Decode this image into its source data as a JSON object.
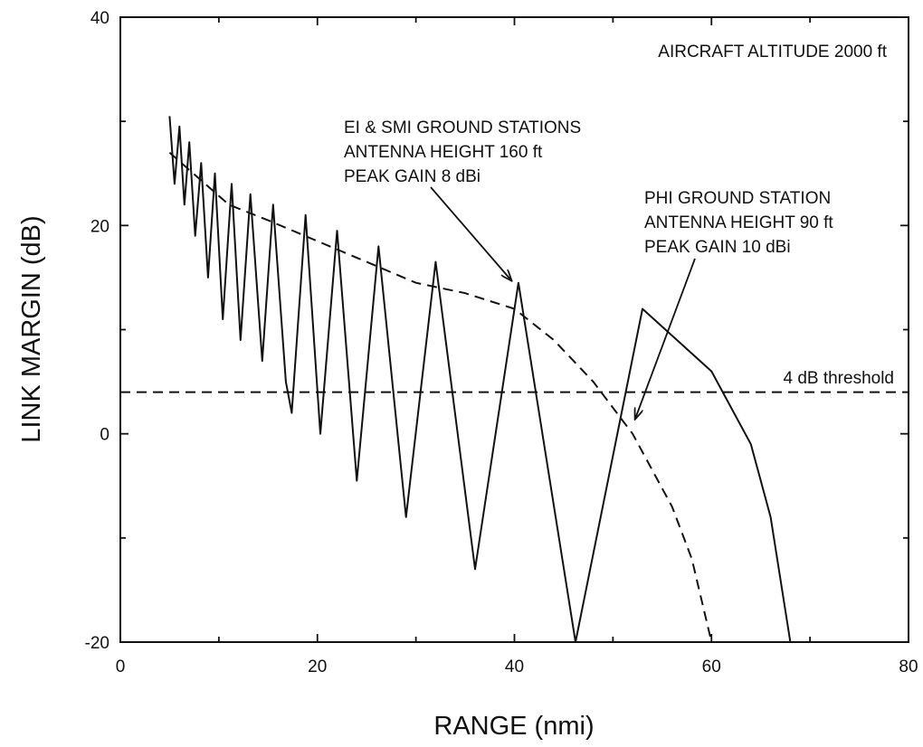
{
  "chart_data": {
    "type": "line",
    "xlabel": "RANGE (nmi)",
    "ylabel": "LINK MARGIN (dB)",
    "xlim": [
      0,
      80
    ],
    "ylim": [
      -20,
      40
    ],
    "x_ticks": [
      0,
      20,
      40,
      60,
      80
    ],
    "y_ticks": [
      -20,
      0,
      20,
      40
    ],
    "grid": false,
    "series": [
      {
        "style": "solid",
        "x": [
          5,
          5.5,
          6,
          6.5,
          7,
          7.6,
          8.2,
          8.9,
          9.6,
          10.4,
          11.3,
          12.2,
          13.2,
          14.4,
          15.5,
          16.8,
          17.4,
          18.8,
          20.3,
          22.0,
          24.0,
          26.2,
          29.0,
          32.0,
          36.0,
          40.4,
          46.2,
          53.0,
          60.0,
          64.0,
          66.0,
          68.0
        ],
        "y": [
          30.5,
          24,
          29.5,
          22,
          28,
          19,
          26,
          15,
          25,
          11,
          24,
          9,
          23,
          7,
          22,
          5,
          2,
          21,
          0,
          19.5,
          -4.5,
          18,
          -8,
          16.5,
          -13,
          14.5,
          -20,
          12,
          6,
          -1,
          -8,
          -20
        ]
      },
      {
        "style": "dashed",
        "x": [
          5,
          8,
          11,
          15,
          20,
          25,
          30,
          35,
          40,
          44,
          48,
          52,
          56,
          58,
          60
        ],
        "y": [
          27,
          24.5,
          22,
          20.5,
          18.5,
          16.5,
          14.5,
          13.5,
          12,
          9,
          5,
          0,
          -7,
          -12,
          -20
        ]
      },
      {
        "style": "dashed",
        "x": [
          0,
          80
        ],
        "y": [
          4,
          4
        ]
      }
    ],
    "annotations": [
      {
        "lines": [
          "AIRCRAFT ALTITUDE 2000 ft"
        ]
      },
      {
        "lines": [
          "EI & SMI GROUND STATIONS",
          "ANTENNA HEIGHT 160 ft",
          "PEAK GAIN 8 dBi"
        ],
        "points_to": [
          40.5,
          14.5
        ]
      },
      {
        "lines": [
          "PHI GROUND STATION",
          "ANTENNA HEIGHT 90 ft",
          "PEAK GAIN 10 dBi"
        ],
        "points_to": [
          51.5,
          1.5
        ]
      },
      {
        "lines": [
          "4 dB threshold"
        ]
      }
    ]
  }
}
